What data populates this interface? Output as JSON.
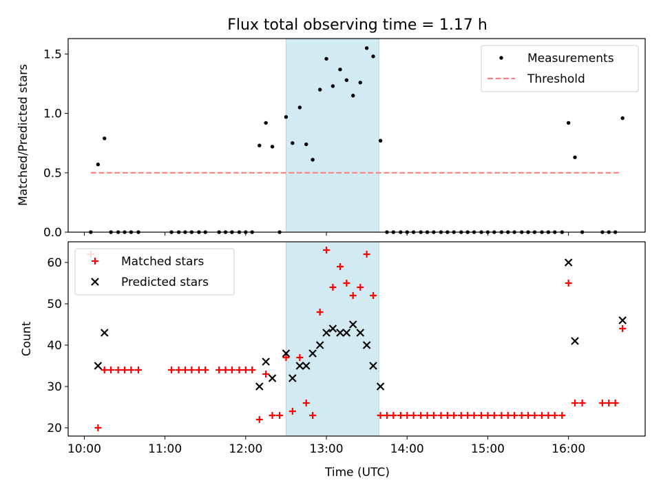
{
  "title": "Flux total observing time = 1.17 h",
  "colors": {
    "highlight": "#add8e6",
    "measurement": "#000000",
    "threshold": "#ff7f7f",
    "matched": "#ff0000",
    "predicted": "#000000"
  },
  "chart_data": [
    {
      "type": "scatter",
      "ylabel": "Matched/Predicted stars",
      "ylim": [
        0,
        1.63
      ],
      "yticks": [
        0.0,
        0.5,
        1.0,
        1.5
      ],
      "ytick_labels": [
        "0.0",
        "0.5",
        "1.0",
        "1.5"
      ],
      "xlim_hours": [
        9.8,
        16.95
      ],
      "highlight_span_hours": [
        12.5,
        13.65
      ],
      "legend": {
        "location": "upper right",
        "labels": [
          "Measurements",
          "Threshold"
        ]
      },
      "threshold": {
        "name": "Threshold",
        "value": 0.5,
        "x_range_hours": [
          10.08,
          16.65
        ]
      },
      "series": [
        {
          "name": "Measurements",
          "x_hours": [
            10.08,
            10.17,
            10.25,
            10.33,
            10.42,
            10.5,
            10.58,
            10.67,
            11.08,
            11.17,
            11.25,
            11.33,
            11.42,
            11.5,
            11.67,
            11.75,
            11.83,
            11.92,
            12.0,
            12.08,
            12.17,
            12.25,
            12.33,
            12.42,
            12.5,
            12.58,
            12.67,
            12.75,
            12.83,
            12.92,
            13.0,
            13.08,
            13.17,
            13.25,
            13.33,
            13.42,
            13.5,
            13.58,
            13.67,
            13.75,
            13.83,
            13.92,
            14.0,
            14.08,
            14.17,
            14.25,
            14.33,
            14.42,
            14.5,
            14.58,
            14.67,
            14.75,
            14.83,
            14.92,
            15.0,
            15.08,
            15.17,
            15.25,
            15.33,
            15.42,
            15.5,
            15.58,
            15.67,
            15.75,
            15.83,
            15.92,
            16.0,
            16.08,
            16.17,
            16.42,
            16.5,
            16.58,
            16.67
          ],
          "values": [
            0.0,
            0.57,
            0.79,
            0.0,
            0.0,
            0.0,
            0.0,
            0.0,
            0.0,
            0.0,
            0.0,
            0.0,
            0.0,
            0.0,
            0.0,
            0.0,
            0.0,
            0.0,
            0.0,
            0.0,
            0.73,
            0.92,
            0.72,
            0.0,
            0.97,
            0.75,
            1.05,
            0.74,
            0.61,
            1.2,
            1.46,
            1.23,
            1.37,
            1.28,
            1.15,
            1.26,
            1.55,
            1.48,
            0.77,
            0.0,
            0.0,
            0.0,
            0.0,
            0.0,
            0.0,
            0.0,
            0.0,
            0.0,
            0.0,
            0.0,
            0.0,
            0.0,
            0.0,
            0.0,
            0.0,
            0.0,
            0.0,
            0.0,
            0.0,
            0.0,
            0.0,
            0.0,
            0.0,
            0.0,
            0.0,
            0.0,
            0.92,
            0.63,
            0.0,
            0.0,
            0.0,
            0.0,
            0.96
          ]
        }
      ]
    },
    {
      "type": "scatter",
      "xlabel": "Time (UTC)",
      "ylabel": "Count",
      "ylim": [
        18,
        65
      ],
      "yticks": [
        20,
        30,
        40,
        50,
        60
      ],
      "ytick_labels": [
        "20",
        "30",
        "40",
        "50",
        "60"
      ],
      "xlim_hours": [
        9.8,
        16.95
      ],
      "xticks_hours": [
        10,
        11,
        12,
        13,
        14,
        15,
        16
      ],
      "xtick_labels": [
        "10:00",
        "11:00",
        "12:00",
        "13:00",
        "14:00",
        "15:00",
        "16:00"
      ],
      "highlight_span_hours": [
        12.5,
        13.65
      ],
      "legend": {
        "location": "upper left",
        "labels": [
          "Matched stars",
          "Predicted stars"
        ]
      },
      "series": [
        {
          "name": "Matched stars",
          "marker": "plus",
          "x_hours": [
            10.08,
            10.17,
            10.25,
            10.33,
            10.42,
            10.5,
            10.58,
            10.67,
            11.08,
            11.17,
            11.25,
            11.33,
            11.42,
            11.5,
            11.67,
            11.75,
            11.83,
            11.92,
            12.0,
            12.08,
            12.17,
            12.25,
            12.33,
            12.42,
            12.5,
            12.58,
            12.67,
            12.75,
            12.83,
            12.92,
            13.0,
            13.08,
            13.17,
            13.25,
            13.33,
            13.42,
            13.5,
            13.58,
            13.67,
            13.75,
            13.83,
            13.92,
            14.0,
            14.08,
            14.17,
            14.25,
            14.33,
            14.42,
            14.5,
            14.58,
            14.67,
            14.75,
            14.83,
            14.92,
            15.0,
            15.08,
            15.17,
            15.25,
            15.33,
            15.42,
            15.5,
            15.58,
            15.67,
            15.75,
            15.83,
            15.92,
            16.0,
            16.08,
            16.17,
            16.42,
            16.5,
            16.58,
            16.67
          ],
          "values": [
            62,
            20,
            34,
            34,
            34,
            34,
            34,
            34,
            34,
            34,
            34,
            34,
            34,
            34,
            34,
            34,
            34,
            34,
            34,
            34,
            22,
            33,
            23,
            23,
            37,
            24,
            37,
            26,
            23,
            48,
            63,
            54,
            59,
            55,
            52,
            54,
            62,
            52,
            23,
            23,
            23,
            23,
            23,
            23,
            23,
            23,
            23,
            23,
            23,
            23,
            23,
            23,
            23,
            23,
            23,
            23,
            23,
            23,
            23,
            23,
            23,
            23,
            23,
            23,
            23,
            23,
            55,
            26,
            26,
            26,
            26,
            26,
            44
          ]
        },
        {
          "name": "Predicted stars",
          "marker": "x",
          "x_hours": [
            10.17,
            10.25,
            12.17,
            12.25,
            12.33,
            12.5,
            12.58,
            12.67,
            12.75,
            12.83,
            12.92,
            13.0,
            13.08,
            13.17,
            13.25,
            13.33,
            13.42,
            13.5,
            13.58,
            13.67,
            16.0,
            16.08,
            16.67
          ],
          "values": [
            35,
            43,
            30,
            36,
            32,
            38,
            32,
            35,
            35,
            38,
            40,
            43,
            44,
            43,
            43,
            45,
            43,
            40,
            35,
            30,
            60,
            41,
            46
          ]
        }
      ]
    }
  ]
}
